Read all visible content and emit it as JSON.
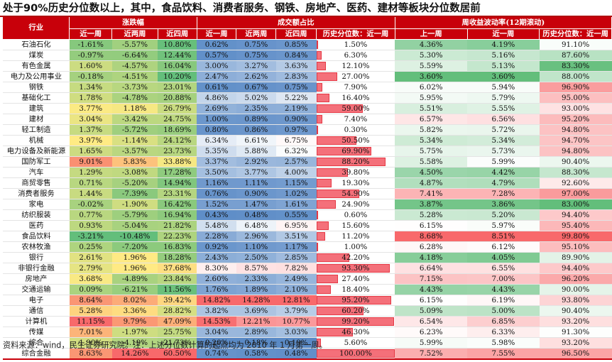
{
  "title": "处于90%历史分位数以上，其中，食品饮料、消费者服务、钢铁、房地产、医药、建材等板块分位数居前",
  "source": "资料来源：wind，民生证券研究院。注：上述分位数计算的起点均为 2010 年 1 月第一周。",
  "chart_data": {
    "type": "table",
    "header": {
      "industry": "行业",
      "groups": [
        "涨跌幅",
        "成交额占比",
        "周收益波动率(12期滚动)"
      ],
      "columns": [
        "近一周",
        "近两周",
        "近四周",
        "近一周",
        "近两周",
        "近四周",
        "历史分位数：近一周",
        "上一周",
        "近一周",
        "历史分位数：近一周"
      ]
    },
    "rows": [
      {
        "industry": "石油石化",
        "ret1w": "-1.61%",
        "ret2w": "-5.57%",
        "ret4w": "10.80%",
        "to1w": "0.62%",
        "to2w": "0.75%",
        "to4w": "0.85%",
        "to_pct": "1.50%",
        "vol_prev": "4.36%",
        "vol_1w": "4.19%",
        "vol_pct": "91.10%"
      },
      {
        "industry": "煤炭",
        "ret1w": "-0.97%",
        "ret2w": "-6.64%",
        "ret4w": "12.44%",
        "to1w": "0.57%",
        "to2w": "0.75%",
        "to4w": "0.84%",
        "to_pct": "6.30%",
        "vol_prev": "5.30%",
        "vol_1w": "5.16%",
        "vol_pct": "87.60%"
      },
      {
        "industry": "有色金属",
        "ret1w": "1.60%",
        "ret2w": "-4.57%",
        "ret4w": "16.04%",
        "to1w": "3.00%",
        "to2w": "3.27%",
        "to4w": "3.63%",
        "to_pct": "12.10%",
        "vol_prev": "5.59%",
        "vol_1w": "5.13%",
        "vol_pct": "83.30%"
      },
      {
        "industry": "电力及公用事业",
        "ret1w": "-0.18%",
        "ret2w": "-4.51%",
        "ret4w": "10.20%",
        "to1w": "2.47%",
        "to2w": "2.62%",
        "to4w": "2.83%",
        "to_pct": "27.00%",
        "vol_prev": "3.60%",
        "vol_1w": "3.60%",
        "vol_pct": "88.00%"
      },
      {
        "industry": "钢铁",
        "ret1w": "1.34%",
        "ret2w": "-3.73%",
        "ret4w": "23.01%",
        "to1w": "0.61%",
        "to2w": "0.67%",
        "to4w": "0.75%",
        "to_pct": "7.90%",
        "vol_prev": "6.02%",
        "vol_1w": "5.94%",
        "vol_pct": "96.90%"
      },
      {
        "industry": "基础化工",
        "ret1w": "1.78%",
        "ret2w": "-4.78%",
        "ret4w": "20.88%",
        "to1w": "4.86%",
        "to2w": "5.02%",
        "to4w": "5.22%",
        "to_pct": "16.40%",
        "vol_prev": "5.95%",
        "vol_1w": "5.79%",
        "vol_pct": "95.00%"
      },
      {
        "industry": "建筑",
        "ret1w": "3.77%",
        "ret2w": "1.18%",
        "ret4w": "26.79%",
        "to1w": "2.69%",
        "to2w": "2.35%",
        "to4w": "2.19%",
        "to_pct": "59.00%",
        "vol_prev": "5.51%",
        "vol_1w": "5.55%",
        "vol_pct": "93.00%"
      },
      {
        "industry": "建材",
        "ret1w": "3.04%",
        "ret2w": "-3.42%",
        "ret4w": "24.75%",
        "to1w": "1.00%",
        "to2w": "0.89%",
        "to4w": "0.90%",
        "to_pct": "7.40%",
        "vol_prev": "6.57%",
        "vol_1w": "6.56%",
        "vol_pct": "95.20%"
      },
      {
        "industry": "轻工制造",
        "ret1w": "1.37%",
        "ret2w": "-5.72%",
        "ret4w": "18.69%",
        "to1w": "0.80%",
        "to2w": "0.86%",
        "to4w": "0.97%",
        "to_pct": "0.30%",
        "vol_prev": "5.82%",
        "vol_1w": "5.72%",
        "vol_pct": "94.80%"
      },
      {
        "industry": "机械",
        "ret1w": "3.97%",
        "ret2w": "-1.14%",
        "ret4w": "24.12%",
        "to1w": "6.34%",
        "to2w": "6.61%",
        "to4w": "6.75%",
        "to_pct": "50.50%",
        "vol_prev": "5.34%",
        "vol_1w": "5.34%",
        "vol_pct": "94.70%"
      },
      {
        "industry": "电力设备及新能源",
        "ret1w": "1.65%",
        "ret2w": "-3.57%",
        "ret4w": "23.73%",
        "to1w": "5.35%",
        "to2w": "5.88%",
        "to4w": "6.32%",
        "to_pct": "69.90%",
        "vol_prev": "5.75%",
        "vol_1w": "5.73%",
        "vol_pct": "94.80%"
      },
      {
        "industry": "国防军工",
        "ret1w": "9.01%",
        "ret2w": "5.83%",
        "ret4w": "33.88%",
        "to1w": "3.37%",
        "to2w": "2.92%",
        "to4w": "2.57%",
        "to_pct": "88.20%",
        "vol_prev": "5.58%",
        "vol_1w": "5.99%",
        "vol_pct": "90.40%"
      },
      {
        "industry": "汽车",
        "ret1w": "1.29%",
        "ret2w": "-3.08%",
        "ret4w": "17.28%",
        "to1w": "3.50%",
        "to2w": "3.77%",
        "to4w": "4.00%",
        "to_pct": "39.80%",
        "vol_prev": "4.50%",
        "vol_1w": "4.42%",
        "vol_pct": "88.30%"
      },
      {
        "industry": "商贸零售",
        "ret1w": "0.71%",
        "ret2w": "-5.20%",
        "ret4w": "14.94%",
        "to1w": "1.16%",
        "to2w": "1.11%",
        "to4w": "1.15%",
        "to_pct": "19.30%",
        "vol_prev": "4.87%",
        "vol_1w": "4.79%",
        "vol_pct": "92.60%"
      },
      {
        "industry": "消费者服务",
        "ret1w": "1.44%",
        "ret2w": "-7.39%",
        "ret4w": "23.31%",
        "to1w": "0.76%",
        "to2w": "0.90%",
        "to4w": "1.02%",
        "to_pct": "54.90%",
        "vol_prev": "7.41%",
        "vol_1w": "7.28%",
        "vol_pct": "97.00%"
      },
      {
        "industry": "家电",
        "ret1w": "-0.02%",
        "ret2w": "-1.90%",
        "ret4w": "16.42%",
        "to1w": "1.52%",
        "to2w": "1.47%",
        "to4w": "1.61%",
        "to_pct": "24.90%",
        "vol_prev": "3.87%",
        "vol_1w": "3.86%",
        "vol_pct": "83.00%"
      },
      {
        "industry": "纺织服装",
        "ret1w": "0.77%",
        "ret2w": "-5.79%",
        "ret4w": "16.94%",
        "to1w": "0.43%",
        "to2w": "0.48%",
        "to4w": "0.55%",
        "to_pct": "0.60%",
        "vol_prev": "5.28%",
        "vol_1w": "5.20%",
        "vol_pct": "94.40%"
      },
      {
        "industry": "医药",
        "ret1w": "0.93%",
        "ret2w": "-5.04%",
        "ret4w": "21.82%",
        "to1w": "5.48%",
        "to2w": "6.48%",
        "to4w": "6.95%",
        "to_pct": "15.60%",
        "vol_prev": "6.15%",
        "vol_1w": "5.97%",
        "vol_pct": "95.40%"
      },
      {
        "industry": "食品饮料",
        "ret1w": "-3.21%",
        "ret2w": "-10.48%",
        "ret4w": "22.23%",
        "to1w": "2.28%",
        "to2w": "2.96%",
        "to4w": "3.51%",
        "to_pct": "11.20%",
        "vol_prev": "8.68%",
        "vol_1w": "8.51%",
        "vol_pct": "99.80%"
      },
      {
        "industry": "农林牧渔",
        "ret1w": "0.25%",
        "ret2w": "-7.20%",
        "ret4w": "16.83%",
        "to1w": "0.92%",
        "to2w": "1.10%",
        "to4w": "1.17%",
        "to_pct": "1.00%",
        "vol_prev": "6.28%",
        "vol_1w": "6.12%",
        "vol_pct": "95.10%"
      },
      {
        "industry": "银行",
        "ret1w": "2.61%",
        "ret2w": "1.96%",
        "ret4w": "18.28%",
        "to1w": "2.43%",
        "to2w": "2.50%",
        "to4w": "2.85%",
        "to_pct": "42.20%",
        "vol_prev": "4.18%",
        "vol_1w": "4.05%",
        "vol_pct": "89.90%"
      },
      {
        "industry": "非银行金融",
        "ret1w": "2.79%",
        "ret2w": "1.96%",
        "ret4w": "37.68%",
        "to1w": "8.30%",
        "to2w": "8.57%",
        "to4w": "7.82%",
        "to_pct": "93.30%",
        "vol_prev": "6.64%",
        "vol_1w": "6.55%",
        "vol_pct": "94.40%"
      },
      {
        "industry": "房地产",
        "ret1w": "3.68%",
        "ret2w": "-4.89%",
        "ret4w": "23.84%",
        "to1w": "2.60%",
        "to2w": "2.33%",
        "to4w": "2.49%",
        "to_pct": "27.40%",
        "vol_prev": "7.15%",
        "vol_1w": "7.00%",
        "vol_pct": "96.20%"
      },
      {
        "industry": "交通运输",
        "ret1w": "0.09%",
        "ret2w": "-6.21%",
        "ret4w": "11.56%",
        "to1w": "1.76%",
        "to2w": "1.89%",
        "to4w": "2.10%",
        "to_pct": "18.40%",
        "vol_prev": "4.43%",
        "vol_1w": "4.43%",
        "vol_pct": "90.00%"
      },
      {
        "industry": "电子",
        "ret1w": "8.64%",
        "ret2w": "8.02%",
        "ret4w": "39.42%",
        "to1w": "14.82%",
        "to2w": "14.28%",
        "to4w": "12.81%",
        "to_pct": "95.20%",
        "vol_prev": "6.15%",
        "vol_1w": "6.19%",
        "vol_pct": "93.80%"
      },
      {
        "industry": "通信",
        "ret1w": "5.28%",
        "ret2w": "3.36%",
        "ret4w": "28.82%",
        "to1w": "3.82%",
        "to2w": "3.69%",
        "to4w": "3.79%",
        "to_pct": "60.20%",
        "vol_prev": "5.09%",
        "vol_1w": "5.00%",
        "vol_pct": "90.40%"
      },
      {
        "industry": "计算机",
        "ret1w": "11.15%",
        "ret2w": "9.79%",
        "ret4w": "47.09%",
        "to1w": "14.53%",
        "to2w": "12.21%",
        "to4w": "10.77%",
        "to_pct": "99.20%",
        "vol_prev": "6.54%",
        "vol_1w": "6.85%",
        "vol_pct": "93.20%"
      },
      {
        "industry": "传媒",
        "ret1w": "7.01%",
        "ret2w": "-1.97%",
        "ret4w": "25.75%",
        "to1w": "3.04%",
        "to2w": "2.89%",
        "to4w": "3.03%",
        "to_pct": "46.30%",
        "vol_prev": "6.23%",
        "vol_1w": "6.33%",
        "vol_pct": "91.30%"
      },
      {
        "industry": "综合",
        "ret1w": "1.90%",
        "ret2w": "-4.19%",
        "ret4w": "21.73%",
        "to1w": "0.20%",
        "to2w": "0.18%",
        "to4w": "0.19%",
        "to_pct": "5.60%",
        "vol_prev": "5.99%",
        "vol_1w": "5.98%",
        "vol_pct": "93.20%"
      },
      {
        "industry": "综合金融",
        "ret1w": "8.63%",
        "ret2w": "14.26%",
        "ret4w": "60.50%",
        "to1w": "0.74%",
        "to2w": "0.58%",
        "to4w": "0.48%",
        "to_pct": "100.00%",
        "vol_prev": "7.52%",
        "vol_1w": "7.55%",
        "vol_pct": "96.50%"
      }
    ]
  }
}
